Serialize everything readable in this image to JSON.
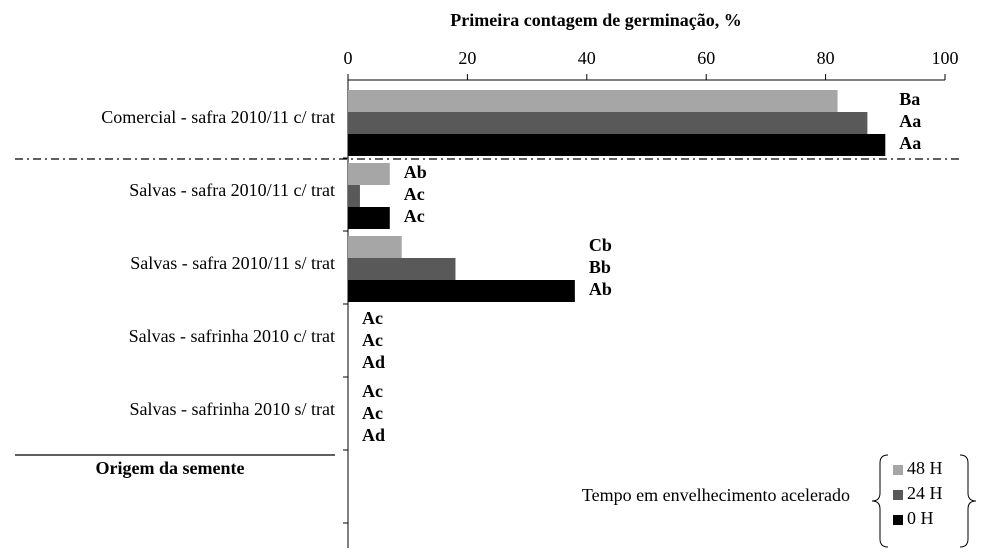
{
  "chart_data": {
    "type": "barh",
    "title": "Primeira contagem de germinação, %",
    "y_label": "Origem da semente",
    "legend_title": "Tempo em envelhecimento acelerado",
    "categories": [
      "Comercial - safra 2010/11 c/ trat",
      "Salvas - safra 2010/11 c/ trat",
      "Salvas - safra 2010/11 s/ trat",
      "Salvas - safrinha 2010 c/ trat",
      "Salvas - safrinha 2010 s/ trat"
    ],
    "series": [
      {
        "name": "48 H",
        "color": "#a6a6a6",
        "values": [
          82,
          7,
          9,
          0,
          0
        ],
        "letters": [
          "Ba",
          "Ab",
          "Cb",
          "Ac",
          "Ac"
        ]
      },
      {
        "name": "24 H",
        "color": "#595959",
        "values": [
          87,
          2,
          18,
          0,
          0
        ],
        "letters": [
          "Aa",
          "Ac",
          "Bb",
          "Ac",
          "Ac"
        ]
      },
      {
        "name": "0 H",
        "color": "#000000",
        "values": [
          90,
          7,
          38,
          0,
          0
        ],
        "letters": [
          "Aa",
          "Ac",
          "Ab",
          "Ad",
          "Ad"
        ]
      }
    ],
    "xlim": [
      0,
      100
    ],
    "xticks": [
      0,
      20,
      40,
      60,
      80,
      100
    ]
  }
}
